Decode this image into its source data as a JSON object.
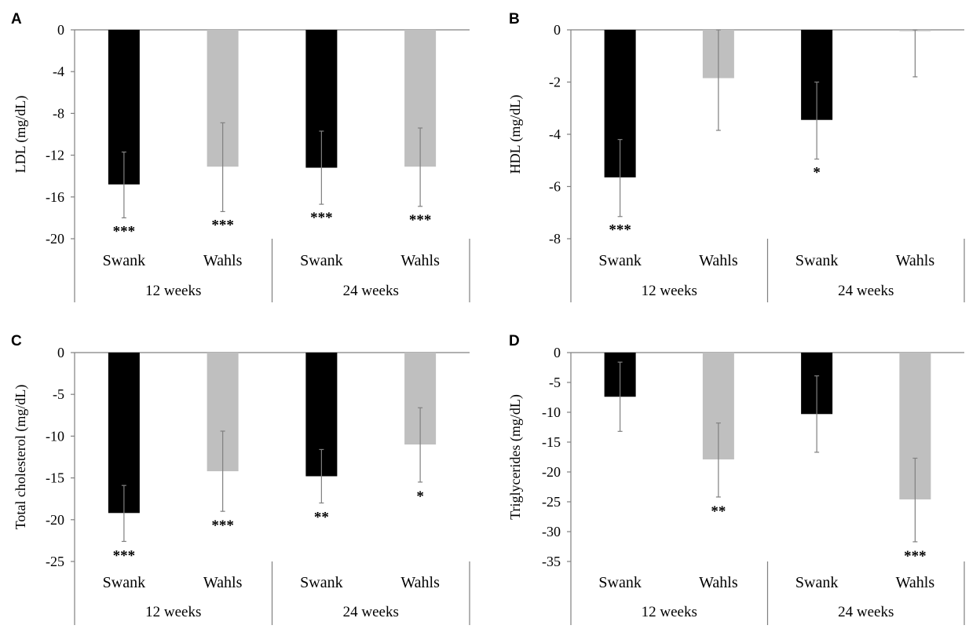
{
  "colors": {
    "swank": "#000000",
    "wahls": "#bfbfbf",
    "axis": "#808080",
    "errorbar": "#808080"
  },
  "chart_data": [
    {
      "panel": "A",
      "type": "bar",
      "ylabel": "LDL (mg/dL)",
      "ylim": [
        -20,
        0
      ],
      "yticks": [
        0,
        -4,
        -8,
        -12,
        -16,
        -20
      ],
      "ytick_labels": [
        "0",
        "-4",
        "-8",
        "-12",
        "-16",
        "-20"
      ],
      "categories": [
        "Swank",
        "Wahls",
        "Swank",
        "Wahls"
      ],
      "groups": [
        "12 weeks",
        "24 weeks"
      ],
      "series_colors": [
        "swank",
        "wahls",
        "swank",
        "wahls"
      ],
      "values": [
        -14.8,
        -13.1,
        -13.2,
        -13.1
      ],
      "error_low": [
        -18.0,
        -17.4,
        -16.7,
        -16.9
      ],
      "error_high": [
        -11.7,
        -8.9,
        -9.7,
        -9.4
      ],
      "significance": [
        "***",
        "***",
        "***",
        "***"
      ]
    },
    {
      "panel": "B",
      "type": "bar",
      "ylabel": "HDL (mg/dL)",
      "ylim": [
        -8,
        0
      ],
      "yticks": [
        0,
        -2,
        -4,
        -6,
        -8
      ],
      "ytick_labels": [
        "0",
        "-2",
        "-4",
        "-6",
        "-8"
      ],
      "categories": [
        "Swank",
        "Wahls",
        "Swank",
        "Wahls"
      ],
      "groups": [
        "12 weeks",
        "24 weeks"
      ],
      "series_colors": [
        "swank",
        "wahls",
        "swank",
        "wahls"
      ],
      "values": [
        -5.65,
        -1.85,
        -3.45,
        -0.05
      ],
      "error_low": [
        -7.15,
        -3.85,
        -4.95,
        -1.8
      ],
      "error_high": [
        -4.2,
        0.0,
        -2.0,
        0.0
      ],
      "significance": [
        "***",
        "",
        "*",
        ""
      ]
    },
    {
      "panel": "C",
      "type": "bar",
      "ylabel": "Total cholesterol (mg/dL)",
      "ylim": [
        -25,
        0
      ],
      "yticks": [
        0,
        -5,
        -10,
        -15,
        -20,
        -25
      ],
      "ytick_labels": [
        "0",
        "-5",
        "-10",
        "-15",
        "-20",
        "-25"
      ],
      "categories": [
        "Swank",
        "Wahls",
        "Swank",
        "Wahls"
      ],
      "groups": [
        "12 weeks",
        "24 weeks"
      ],
      "series_colors": [
        "swank",
        "wahls",
        "swank",
        "wahls"
      ],
      "values": [
        -19.2,
        -14.2,
        -14.8,
        -11.0
      ],
      "error_low": [
        -22.6,
        -19.0,
        -18.0,
        -15.5
      ],
      "error_high": [
        -15.9,
        -9.4,
        -11.6,
        -6.6
      ],
      "significance": [
        "***",
        "***",
        "**",
        "*"
      ]
    },
    {
      "panel": "D",
      "type": "bar",
      "ylabel": "Triglycerides (mg/dL)",
      "ylim": [
        -35,
        0
      ],
      "yticks": [
        0,
        -5,
        -10,
        -15,
        -20,
        -25,
        -30,
        -35
      ],
      "ytick_labels": [
        "0",
        "-5",
        "-10",
        "-15",
        "-20",
        "-25",
        "-30",
        "-35"
      ],
      "categories": [
        "Swank",
        "Wahls",
        "Swank",
        "Wahls"
      ],
      "groups": [
        "12 weeks",
        "24 weeks"
      ],
      "series_colors": [
        "swank",
        "wahls",
        "swank",
        "wahls"
      ],
      "values": [
        -7.4,
        -17.9,
        -10.3,
        -24.6
      ],
      "error_low": [
        -13.2,
        -24.2,
        -16.7,
        -31.7
      ],
      "error_high": [
        -1.6,
        -11.8,
        -3.9,
        -17.7
      ],
      "significance": [
        "",
        "**",
        "",
        "***"
      ]
    }
  ]
}
